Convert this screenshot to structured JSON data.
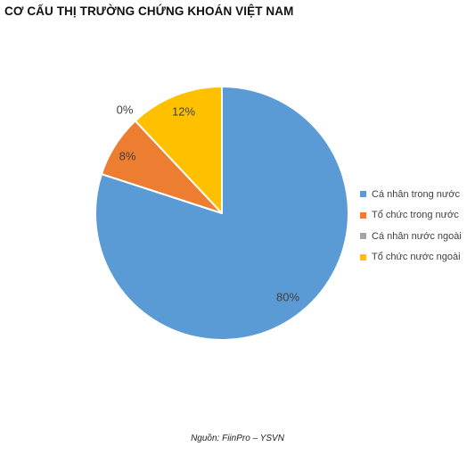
{
  "title": "CƠ CẤU THỊ TRƯỜNG CHỨNG KHOÁN VIỆT NAM",
  "source_note": "Nguồn: FiinPro – YSVN",
  "chart_data": {
    "type": "pie",
    "title": "CƠ CẤU THỊ TRƯỜNG CHỨNG KHOÁN VIỆT NAM",
    "legend_position": "right",
    "slices": [
      {
        "label": "Cá nhân trong nước",
        "value": 80,
        "display": "80%",
        "color": "#5b9bd5"
      },
      {
        "label": "Tổ chức trong nước",
        "value": 8,
        "display": "8%",
        "color": "#ed7d31"
      },
      {
        "label": "Cá nhân nước ngoài",
        "value": 0,
        "display": "0%",
        "color": "#a5a5a5"
      },
      {
        "label": "Tổ chức nước ngoài",
        "value": 12,
        "display": "12%",
        "color": "#ffc000"
      }
    ]
  }
}
